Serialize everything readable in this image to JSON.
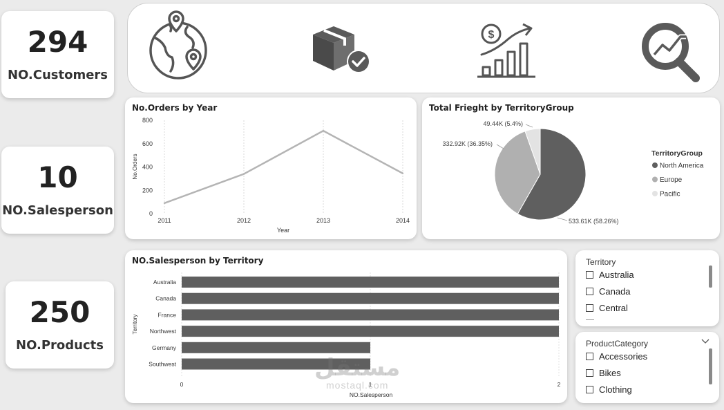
{
  "kpis": [
    {
      "value": "294",
      "label": "NO.Customers"
    },
    {
      "value": "10",
      "label": "NO.Salesperson"
    },
    {
      "value": "250",
      "label": "NO.Products"
    }
  ],
  "icons": [
    "globe-location-icon",
    "package-check-icon",
    "revenue-growth-icon",
    "analytics-magnifier-icon"
  ],
  "colors": {
    "dark": "#5f5f5f",
    "mid": "#b0b0b0",
    "light": "#e3e3e3",
    "line": "#b4b4b4"
  },
  "chart_data": [
    {
      "type": "line",
      "title": "No.Orders by Year",
      "xlabel": "Year",
      "ylabel": "No.Orders",
      "x": [
        "2011",
        "2012",
        "2013",
        "2014"
      ],
      "values": [
        90,
        340,
        710,
        345
      ],
      "yticks": [
        "0",
        "200",
        "400",
        "600",
        "800"
      ],
      "ylim": [
        0,
        800
      ],
      "grid": true
    },
    {
      "type": "pie",
      "title": "Total Frieght by TerritoryGroup",
      "legend_title": "TerritoryGroup",
      "legend_position": "right",
      "slices": [
        {
          "name": "North America",
          "value": 533.61,
          "label": "533.61K (58.26%)"
        },
        {
          "name": "Europe",
          "value": 332.92,
          "label": "332.92K (36.35%)"
        },
        {
          "name": "Pacific",
          "value": 49.44,
          "label": "49.44K (5.4%)"
        }
      ]
    },
    {
      "type": "bar",
      "orientation": "horizontal",
      "title": "NO.Salesperson by Territory",
      "xlabel": "NO.Salesperson",
      "ylabel": "Territory",
      "categories": [
        "Australia",
        "Canada",
        "France",
        "Northwest",
        "Germany",
        "Southwest"
      ],
      "values": [
        2,
        2,
        2,
        2,
        1,
        1
      ],
      "xticks": [
        "0",
        "1",
        "2"
      ],
      "xlim": [
        0,
        2
      ]
    }
  ],
  "slicers": {
    "territory": {
      "title": "Territory",
      "items": [
        "Australia",
        "Canada",
        "Central"
      ]
    },
    "product_category": {
      "title": "ProductCategory",
      "items": [
        "Accessories",
        "Bikes",
        "Clothing"
      ]
    }
  },
  "watermark": {
    "line1": "مستقل",
    "line2": "mostaql.com"
  }
}
